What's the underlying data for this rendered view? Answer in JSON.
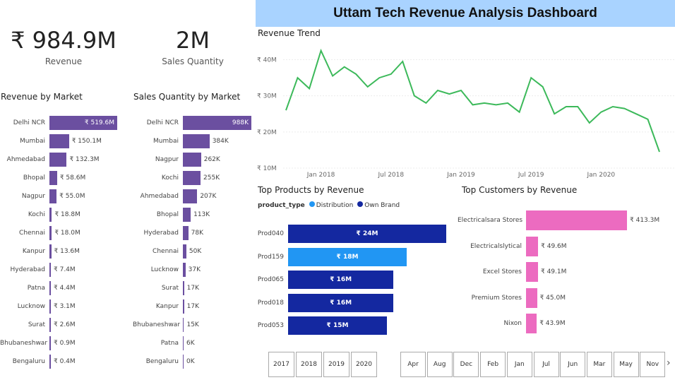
{
  "header": {
    "title": "Uttam Tech Revenue Analysis Dashboard"
  },
  "kpis": {
    "revenue": {
      "value": "₹ 984.9M",
      "label": "Revenue"
    },
    "quantity": {
      "value": "2M",
      "label": "Sales Quantity"
    }
  },
  "revenue_by_market": {
    "title": "Revenue by Market",
    "rows": [
      {
        "market": "Delhi NCR",
        "label": "₹ 519.6M",
        "value": 519.6
      },
      {
        "market": "Mumbai",
        "label": "₹ 150.1M",
        "value": 150.1
      },
      {
        "market": "Ahmedabad",
        "label": "₹ 132.3M",
        "value": 132.3
      },
      {
        "market": "Bhopal",
        "label": "₹ 58.6M",
        "value": 58.6
      },
      {
        "market": "Nagpur",
        "label": "₹ 55.0M",
        "value": 55.0
      },
      {
        "market": "Kochi",
        "label": "₹ 18.8M",
        "value": 18.8
      },
      {
        "market": "Chennai",
        "label": "₹ 18.0M",
        "value": 18.0
      },
      {
        "market": "Kanpur",
        "label": "₹ 13.6M",
        "value": 13.6
      },
      {
        "market": "Hyderabad",
        "label": "₹ 7.4M",
        "value": 7.4
      },
      {
        "market": "Patna",
        "label": "₹ 4.4M",
        "value": 4.4
      },
      {
        "market": "Lucknow",
        "label": "₹ 3.1M",
        "value": 3.1
      },
      {
        "market": "Surat",
        "label": "₹ 2.6M",
        "value": 2.6
      },
      {
        "market": "Bhubaneshwar",
        "label": "₹ 0.9M",
        "value": 0.9
      },
      {
        "market": "Bengaluru",
        "label": "₹ 0.4M",
        "value": 0.4
      }
    ]
  },
  "quantity_by_market": {
    "title": "Sales Quantity by Market",
    "rows": [
      {
        "market": "Delhi NCR",
        "label": "988K",
        "value": 988
      },
      {
        "market": "Mumbai",
        "label": "384K",
        "value": 384
      },
      {
        "market": "Nagpur",
        "label": "262K",
        "value": 262
      },
      {
        "market": "Kochi",
        "label": "255K",
        "value": 255
      },
      {
        "market": "Ahmedabad",
        "label": "207K",
        "value": 207
      },
      {
        "market": "Bhopal",
        "label": "113K",
        "value": 113
      },
      {
        "market": "Hyderabad",
        "label": "78K",
        "value": 78
      },
      {
        "market": "Chennai",
        "label": "50K",
        "value": 50
      },
      {
        "market": "Lucknow",
        "label": "37K",
        "value": 37
      },
      {
        "market": "Surat",
        "label": "17K",
        "value": 17
      },
      {
        "market": "Kanpur",
        "label": "17K",
        "value": 17
      },
      {
        "market": "Bhubaneshwar",
        "label": "15K",
        "value": 15
      },
      {
        "market": "Patna",
        "label": "6K",
        "value": 6
      },
      {
        "market": "Bengaluru",
        "label": "0K",
        "value": 0
      }
    ]
  },
  "trend": {
    "title": "Revenue Trend",
    "y_ticks": [
      "₹ 10M",
      "₹ 20M",
      "₹ 30M",
      "₹ 40M"
    ],
    "x_ticks": [
      "Jan 2018",
      "Jul 2018",
      "Jan 2019",
      "Jul 2019",
      "Jan 2020"
    ],
    "color": "#3cb95a"
  },
  "top_products": {
    "title": "Top Products by Revenue",
    "legend_title": "product_type",
    "legend": [
      {
        "name": "Distribution",
        "color": "#2196f3"
      },
      {
        "name": "Own Brand",
        "color": "#1428a0"
      }
    ],
    "rows": [
      {
        "product": "Prod040",
        "label": "₹ 24M",
        "value": 24,
        "type": "Own Brand"
      },
      {
        "product": "Prod159",
        "label": "₹ 18M",
        "value": 18,
        "type": "Distribution"
      },
      {
        "product": "Prod065",
        "label": "₹ 16M",
        "value": 16,
        "type": "Own Brand"
      },
      {
        "product": "Prod018",
        "label": "₹ 16M",
        "value": 16,
        "type": "Own Brand"
      },
      {
        "product": "Prod053",
        "label": "₹ 15M",
        "value": 15,
        "type": "Own Brand"
      }
    ]
  },
  "top_customers": {
    "title": "Top Customers by Revenue",
    "color": "#ec6bc0",
    "rows": [
      {
        "customer": "Electricalsara Stores",
        "label": "₹ 413.3M",
        "value": 413.3
      },
      {
        "customer": "Electricalslytical",
        "label": "₹ 49.6M",
        "value": 49.6
      },
      {
        "customer": "Excel Stores",
        "label": "₹ 49.1M",
        "value": 49.1
      },
      {
        "customer": "Premium Stores",
        "label": "₹ 45.0M",
        "value": 45.0
      },
      {
        "customer": "Nixon",
        "label": "₹ 43.9M",
        "value": 43.9
      }
    ]
  },
  "year_slicer": [
    "2017",
    "2018",
    "2019",
    "2020"
  ],
  "month_slicer": [
    "Apr",
    "Aug",
    "Dec",
    "Feb",
    "Jan",
    "Jul",
    "Jun",
    "Mar",
    "May",
    "Nov"
  ],
  "slicer_next": "›",
  "chart_data": [
    {
      "type": "bar",
      "title": "Revenue by Market",
      "categories": [
        "Delhi NCR",
        "Mumbai",
        "Ahmedabad",
        "Bhopal",
        "Nagpur",
        "Kochi",
        "Chennai",
        "Kanpur",
        "Hyderabad",
        "Patna",
        "Lucknow",
        "Surat",
        "Bhubaneshwar",
        "Bengaluru"
      ],
      "values": [
        519.6,
        150.1,
        132.3,
        58.6,
        55.0,
        18.8,
        18.0,
        13.6,
        7.4,
        4.4,
        3.1,
        2.6,
        0.9,
        0.4
      ],
      "orientation": "horizontal"
    },
    {
      "type": "bar",
      "title": "Sales Quantity by Market",
      "categories": [
        "Delhi NCR",
        "Mumbai",
        "Nagpur",
        "Kochi",
        "Ahmedabad",
        "Bhopal",
        "Hyderabad",
        "Chennai",
        "Lucknow",
        "Surat",
        "Kanpur",
        "Bhubaneshwar",
        "Patna",
        "Bengaluru"
      ],
      "values": [
        988,
        384,
        262,
        255,
        207,
        113,
        78,
        50,
        37,
        17,
        17,
        15,
        6,
        0
      ],
      "orientation": "horizontal"
    },
    {
      "type": "line",
      "title": "Revenue Trend",
      "x": [
        "2017-10",
        "2017-11",
        "2017-12",
        "2018-01",
        "2018-02",
        "2018-03",
        "2018-04",
        "2018-05",
        "2018-06",
        "2018-07",
        "2018-08",
        "2018-09",
        "2018-10",
        "2018-11",
        "2018-12",
        "2019-01",
        "2019-02",
        "2019-03",
        "2019-04",
        "2019-05",
        "2019-06",
        "2019-07",
        "2019-08",
        "2019-09",
        "2019-10",
        "2019-11",
        "2019-12",
        "2020-01",
        "2020-02",
        "2020-03",
        "2020-04",
        "2020-05",
        "2020-06"
      ],
      "values": [
        26,
        35,
        32,
        42.5,
        35.5,
        38,
        36,
        32.5,
        35,
        36,
        39.5,
        30,
        28,
        31.5,
        30.5,
        31.5,
        27.5,
        28,
        27.5,
        28,
        25.5,
        35,
        32.5,
        25,
        27,
        27,
        22.5,
        25.5,
        27,
        26.5,
        25,
        23.5,
        14.5
      ],
      "ylim": [
        10,
        44
      ],
      "ylabel": "",
      "xlabel": ""
    },
    {
      "type": "bar",
      "title": "Top Products by Revenue",
      "categories": [
        "Prod040",
        "Prod159",
        "Prod065",
        "Prod018",
        "Prod053"
      ],
      "values": [
        24,
        18,
        16,
        16,
        15
      ],
      "orientation": "horizontal"
    },
    {
      "type": "bar",
      "title": "Top Customers by Revenue",
      "categories": [
        "Electricalsara Stores",
        "Electricalslytical",
        "Excel Stores",
        "Premium Stores",
        "Nixon"
      ],
      "values": [
        413.3,
        49.6,
        49.1,
        45.0,
        43.9
      ],
      "orientation": "horizontal"
    }
  ]
}
